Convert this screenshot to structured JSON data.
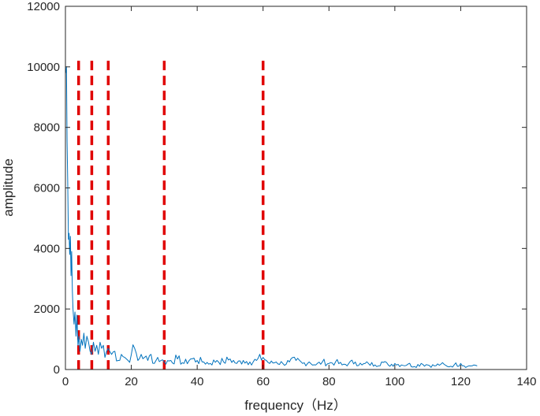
{
  "chart_data": {
    "type": "line",
    "title": "",
    "xlabel": "frequency（Hz）",
    "ylabel": "amplitude",
    "xlim": [
      0,
      140
    ],
    "ylim": [
      0,
      12000
    ],
    "xticks": [
      0,
      20,
      40,
      60,
      80,
      100,
      120,
      140
    ],
    "yticks": [
      0,
      2000,
      4000,
      6000,
      8000,
      10000,
      12000
    ],
    "grid": false,
    "box": true,
    "colors": {
      "spectrum": "#0072BD",
      "markers": "#E00000",
      "axes": "#262626"
    },
    "series": [
      {
        "x": [
          0.1,
          0.3,
          0.5,
          0.7,
          0.9,
          1.1,
          1.3,
          1.5,
          1.7,
          1.9,
          2.1,
          2.3,
          2.6,
          2.9,
          3.2,
          3.5,
          3.8,
          4.1,
          4.4,
          4.8,
          5.2,
          5.6,
          6.0,
          6.5,
          7.0,
          7.5,
          8.0,
          8.5,
          9.0,
          9.5,
          10.0,
          10.5,
          11.0,
          11.5,
          12.0,
          12.5,
          13.0,
          14.0,
          15.0,
          16.0,
          17.0,
          18.0,
          19.0,
          20.0,
          21.0,
          22.0,
          23.0,
          24.0,
          25.0,
          26.0,
          27.0,
          28.0,
          29.0,
          30.0,
          32.0,
          34.0,
          36.0,
          38.0,
          40.0,
          42.0,
          44.0,
          46.0,
          48.0,
          50.0,
          52.0,
          54.0,
          56.0,
          58.0,
          60.0,
          62.0,
          64.0,
          66.0,
          68.0,
          70.0,
          72.0,
          74.0,
          76.0,
          78.0,
          80.0,
          82.0,
          84.0,
          86.0,
          88.0,
          90.0,
          92.0,
          94.0,
          96.0,
          98.0,
          100.0,
          102.0,
          104.0,
          106.0,
          108.0,
          110.0,
          112.0,
          114.0,
          116.0,
          118.0,
          120.0,
          122.0,
          124.0,
          125.0
        ],
        "values": [
          9800,
          10000,
          7500,
          6200,
          4300,
          4500,
          3800,
          4400,
          3100,
          3900,
          2600,
          2000,
          1500,
          1900,
          1100,
          1800,
          800,
          1100,
          600,
          1000,
          800,
          1200,
          700,
          1100,
          900,
          600,
          500,
          900,
          600,
          800,
          500,
          900,
          700,
          800,
          400,
          600,
          700,
          500,
          600,
          300,
          500,
          400,
          300,
          500,
          700,
          300,
          500,
          400,
          300,
          500,
          200,
          400,
          300,
          250,
          300,
          350,
          200,
          350,
          300,
          250,
          200,
          300,
          250,
          350,
          200,
          300,
          250,
          300,
          400,
          200,
          250,
          200,
          250,
          300,
          200,
          250,
          150,
          250,
          200,
          250,
          150,
          200,
          250,
          150,
          200,
          150,
          250,
          150,
          200,
          150,
          180,
          100,
          200,
          150,
          120,
          180,
          100,
          150,
          200,
          100,
          150,
          120
        ]
      }
    ],
    "reference_lines": {
      "orientation": "vertical",
      "style": "dashed",
      "x": [
        4,
        8,
        13,
        30,
        60
      ]
    }
  }
}
